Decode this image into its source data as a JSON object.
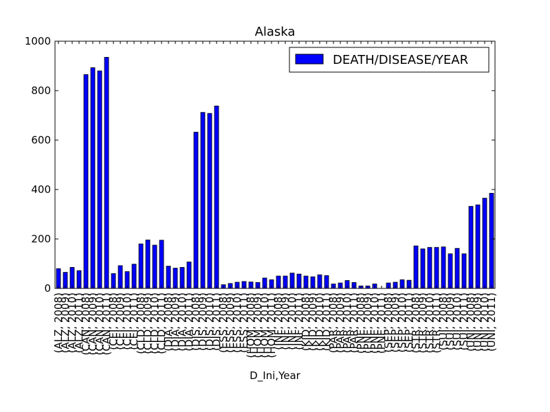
{
  "chart_data": {
    "type": "bar",
    "title": "Alaska",
    "xlabel": "D_Ini,Year",
    "ylabel": "",
    "ylim": [
      0,
      1000
    ],
    "yticks": [
      0,
      200,
      400,
      600,
      800,
      1000
    ],
    "grid": false,
    "legend": {
      "placement": "top-right"
    },
    "series": [
      {
        "name": "DEATH/DISEASE/YEAR",
        "color": "#0000ff",
        "values": [
          80,
          65,
          85,
          72,
          865,
          893,
          880,
          935,
          60,
          92,
          68,
          98,
          180,
          196,
          175,
          195,
          90,
          82,
          85,
          107,
          632,
          712,
          708,
          738,
          15,
          20,
          25,
          28,
          26,
          24,
          42,
          35,
          50,
          50,
          62,
          58,
          50,
          47,
          55,
          52,
          18,
          22,
          32,
          24,
          10,
          10,
          18,
          0,
          22,
          25,
          35,
          33,
          172,
          160,
          166,
          166,
          168,
          140,
          162,
          140,
          332,
          338,
          365,
          385
        ]
      }
    ],
    "categories": [
      "(ALZ, 2008)",
      "(ALZ, 2009)",
      "(ALZ, 2010)",
      "(ALZ, 2011)",
      "(CAN, 2008)",
      "(CAN, 2009)",
      "(CAN, 2010)",
      "(CAN, 2011)",
      "(CEI, 2008)",
      "(CEI, 2009)",
      "(CEI, 2010)",
      "(CEI, 2011)",
      "(CLD, 2008)",
      "(CLD, 2009)",
      "(CLD, 2010)",
      "(CLD, 2011)",
      "(DIA, 2008)",
      "(DIA, 2009)",
      "(DIA, 2010)",
      "(DIA, 2011)",
      "(DIS, 2008)",
      "(DIS, 2009)",
      "(DIS, 2010)",
      "(DIS, 2011)",
      "(ESS, 2008)",
      "(ESS, 2009)",
      "(ESS, 2010)",
      "(ESS, 2011)",
      "(HOM, 2008)",
      "(HOM, 2009)",
      "(HOM, 2010)",
      "(HOM, 2011)",
      "(INF, 2008)",
      "(INF, 2009)",
      "(INF, 2010)",
      "(INF, 2011)",
      "(KID, 2008)",
      "(KID, 2009)",
      "(KID, 2010)",
      "(KID, 2011)",
      "(PAR, 2008)",
      "(PAR, 2009)",
      "(PAR, 2010)",
      "(PAR, 2011)",
      "(PNE, 2008)",
      "(PNE, 2009)",
      "(PNE, 2010)",
      "(PNE, 2011)",
      "(SEP, 2008)",
      "(SEP, 2009)",
      "(SEP, 2010)",
      "(SEP, 2011)",
      "(STR, 2008)",
      "(STR, 2009)",
      "(STR, 2010)",
      "(STR, 2011)",
      "(SUI, 2008)",
      "(SUI, 2009)",
      "(SUI, 2010)",
      "(SUI, 2011)",
      "(UNI, 2008)",
      "(UNI, 2009)",
      "(UNI, 2010)",
      "(UNI, 2011)"
    ]
  }
}
